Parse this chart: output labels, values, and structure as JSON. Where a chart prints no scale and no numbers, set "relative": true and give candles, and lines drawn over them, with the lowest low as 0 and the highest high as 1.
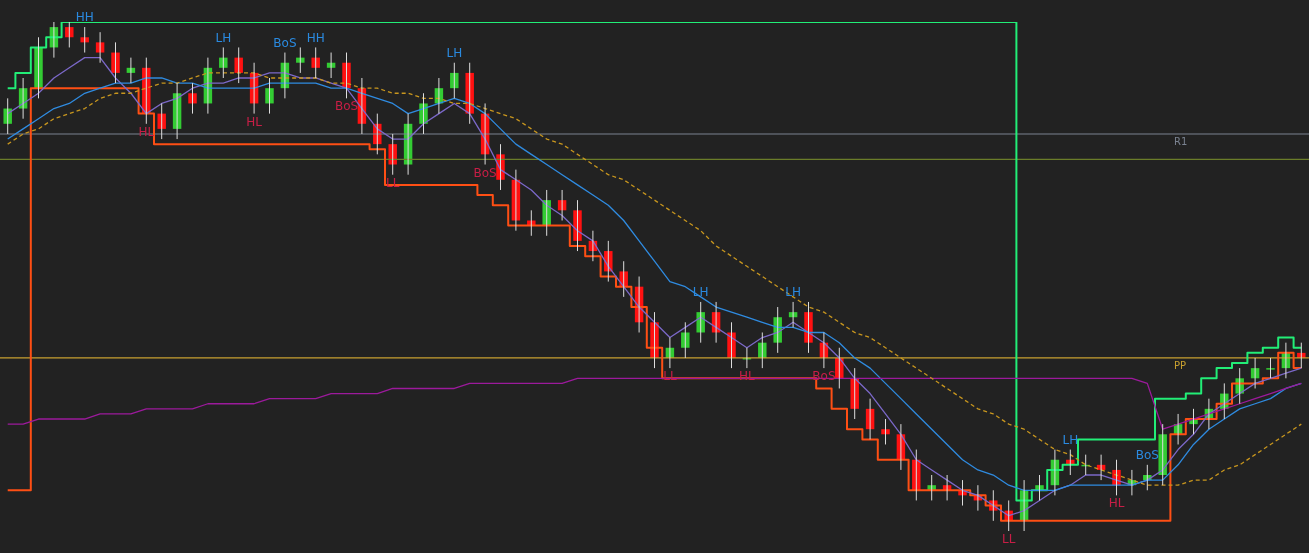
{
  "chart_data": {
    "type": "candlestick",
    "relative": true,
    "categories": [
      null,
      null,
      null,
      null,
      null,
      null,
      null,
      null,
      null,
      null,
      null,
      null,
      null,
      null,
      null,
      null,
      null,
      null,
      null,
      null,
      null,
      null,
      null,
      null,
      null,
      null,
      null,
      null,
      null,
      null,
      null,
      null,
      null,
      null,
      null,
      null,
      null,
      null,
      null,
      null,
      null,
      null,
      null,
      null,
      null,
      null,
      null,
      null,
      null,
      null,
      null,
      null,
      null,
      null,
      null,
      null,
      null,
      null,
      null,
      null,
      null,
      null,
      null,
      null,
      null,
      null,
      null,
      null,
      null,
      null,
      null,
      null,
      null,
      null,
      null,
      null,
      null,
      null,
      null,
      null,
      null,
      null,
      null,
      null,
      null
    ],
    "ohlc": [
      [
        0.8,
        0.85,
        0.78,
        0.83
      ],
      [
        0.83,
        0.89,
        0.81,
        0.87
      ],
      [
        0.87,
        0.97,
        0.85,
        0.95
      ],
      [
        0.95,
        1.0,
        0.93,
        0.99
      ],
      [
        0.99,
        1.0,
        0.95,
        0.97
      ],
      [
        0.97,
        0.99,
        0.94,
        0.96
      ],
      [
        0.96,
        0.98,
        0.92,
        0.94
      ],
      [
        0.94,
        0.96,
        0.88,
        0.9
      ],
      [
        0.9,
        0.93,
        0.88,
        0.91
      ],
      [
        0.91,
        0.93,
        0.8,
        0.82
      ],
      [
        0.82,
        0.84,
        0.77,
        0.79
      ],
      [
        0.79,
        0.88,
        0.77,
        0.86
      ],
      [
        0.86,
        0.88,
        0.82,
        0.84
      ],
      [
        0.84,
        0.93,
        0.82,
        0.91
      ],
      [
        0.91,
        0.95,
        0.89,
        0.93
      ],
      [
        0.93,
        0.95,
        0.88,
        0.9
      ],
      [
        0.9,
        0.92,
        0.82,
        0.84
      ],
      [
        0.84,
        0.89,
        0.82,
        0.87
      ],
      [
        0.87,
        0.94,
        0.85,
        0.92
      ],
      [
        0.92,
        0.95,
        0.9,
        0.93
      ],
      [
        0.93,
        0.95,
        0.89,
        0.91
      ],
      [
        0.91,
        0.94,
        0.89,
        0.92
      ],
      [
        0.92,
        0.94,
        0.85,
        0.87
      ],
      [
        0.87,
        0.89,
        0.78,
        0.8
      ],
      [
        0.8,
        0.82,
        0.74,
        0.76
      ],
      [
        0.76,
        0.78,
        0.7,
        0.72
      ],
      [
        0.72,
        0.82,
        0.7,
        0.8
      ],
      [
        0.8,
        0.86,
        0.78,
        0.84
      ],
      [
        0.84,
        0.89,
        0.82,
        0.87
      ],
      [
        0.87,
        0.92,
        0.85,
        0.9
      ],
      [
        0.9,
        0.92,
        0.8,
        0.82
      ],
      [
        0.82,
        0.84,
        0.72,
        0.74
      ],
      [
        0.74,
        0.76,
        0.67,
        0.69
      ],
      [
        0.69,
        0.71,
        0.59,
        0.61
      ],
      [
        0.61,
        0.63,
        0.58,
        0.6
      ],
      [
        0.6,
        0.67,
        0.58,
        0.65
      ],
      [
        0.65,
        0.67,
        0.61,
        0.63
      ],
      [
        0.63,
        0.65,
        0.55,
        0.57
      ],
      [
        0.57,
        0.59,
        0.53,
        0.55
      ],
      [
        0.55,
        0.57,
        0.49,
        0.51
      ],
      [
        0.51,
        0.53,
        0.46,
        0.48
      ],
      [
        0.48,
        0.5,
        0.39,
        0.41
      ],
      [
        0.41,
        0.43,
        0.32,
        0.34
      ],
      [
        0.34,
        0.38,
        0.32,
        0.36
      ],
      [
        0.36,
        0.41,
        0.34,
        0.39
      ],
      [
        0.39,
        0.45,
        0.37,
        0.43
      ],
      [
        0.43,
        0.45,
        0.37,
        0.39
      ],
      [
        0.39,
        0.41,
        0.32,
        0.34
      ],
      [
        0.34,
        0.36,
        0.32,
        0.34
      ],
      [
        0.34,
        0.39,
        0.32,
        0.37
      ],
      [
        0.37,
        0.44,
        0.35,
        0.42
      ],
      [
        0.42,
        0.45,
        0.4,
        0.43
      ],
      [
        0.43,
        0.45,
        0.35,
        0.37
      ],
      [
        0.37,
        0.39,
        0.32,
        0.34
      ],
      [
        0.34,
        0.36,
        0.28,
        0.3
      ],
      [
        0.3,
        0.32,
        0.22,
        0.24
      ],
      [
        0.24,
        0.26,
        0.18,
        0.2
      ],
      [
        0.2,
        0.22,
        0.17,
        0.19
      ],
      [
        0.19,
        0.21,
        0.12,
        0.14
      ],
      [
        0.14,
        0.16,
        0.06,
        0.08
      ],
      [
        0.08,
        0.11,
        0.06,
        0.09
      ],
      [
        0.09,
        0.11,
        0.06,
        0.08
      ],
      [
        0.08,
        0.1,
        0.05,
        0.07
      ],
      [
        0.07,
        0.09,
        0.04,
        0.06
      ],
      [
        0.06,
        0.08,
        0.02,
        0.04
      ],
      [
        0.04,
        0.06,
        0.0,
        0.02
      ],
      [
        0.02,
        0.1,
        0.0,
        0.08
      ],
      [
        0.08,
        0.11,
        0.06,
        0.09
      ],
      [
        0.09,
        0.16,
        0.07,
        0.14
      ],
      [
        0.14,
        0.16,
        0.11,
        0.13
      ],
      [
        0.13,
        0.15,
        0.11,
        0.13
      ],
      [
        0.13,
        0.15,
        0.1,
        0.12
      ],
      [
        0.12,
        0.14,
        0.07,
        0.09
      ],
      [
        0.09,
        0.12,
        0.07,
        0.1
      ],
      [
        0.1,
        0.13,
        0.08,
        0.11
      ],
      [
        0.11,
        0.21,
        0.09,
        0.19
      ],
      [
        0.19,
        0.23,
        0.17,
        0.21
      ],
      [
        0.21,
        0.24,
        0.19,
        0.22
      ],
      [
        0.22,
        0.26,
        0.2,
        0.24
      ],
      [
        0.24,
        0.29,
        0.22,
        0.27
      ],
      [
        0.27,
        0.32,
        0.25,
        0.3
      ],
      [
        0.3,
        0.34,
        0.28,
        0.32
      ],
      [
        0.32,
        0.34,
        0.3,
        0.32
      ],
      [
        0.32,
        0.37,
        0.3,
        0.35
      ],
      [
        0.35,
        0.37,
        0.32,
        0.34
      ]
    ],
    "colors": [
      "#33cc33",
      "#33cc33",
      "#33cc33",
      "#33cc33",
      "#ff1111",
      "#ff1111",
      "#ff1111",
      "#ff1111",
      "#33cc33",
      "#ff1111",
      "#ff1111",
      "#33cc33",
      "#ff1111",
      "#33cc33",
      "#33cc33",
      "#ff1111",
      "#ff1111",
      "#33cc33",
      "#33cc33",
      "#33cc33",
      "#ff1111",
      "#33cc33",
      "#ff1111",
      "#ff1111",
      "#ff1111",
      "#ff1111",
      "#33cc33",
      "#33cc33",
      "#33cc33",
      "#33cc33",
      "#ff1111",
      "#ff1111",
      "#ff1111",
      "#ff1111",
      "#ff1111",
      "#33cc33",
      "#ff1111",
      "#ff1111",
      "#ff1111",
      "#ff1111",
      "#ff1111",
      "#ff1111",
      "#ff1111",
      "#33cc33",
      "#33cc33",
      "#33cc33",
      "#ff1111",
      "#ff1111",
      "#33cc33",
      "#33cc33",
      "#33cc33",
      "#33cc33",
      "#ff1111",
      "#ff1111",
      "#ff1111",
      "#ff1111",
      "#ff1111",
      "#ff1111",
      "#ff1111",
      "#ff1111",
      "#33cc33",
      "#ff1111",
      "#ff1111",
      "#ff1111",
      "#ff1111",
      "#ff1111",
      "#33cc33",
      "#33cc33",
      "#33cc33",
      "#ff1111",
      "#33cc33",
      "#ff1111",
      "#ff1111",
      "#33cc33",
      "#33cc33",
      "#33cc33",
      "#33cc33",
      "#33cc33",
      "#33cc33",
      "#33cc33",
      "#33cc33",
      "#33cc33",
      "#33cc33",
      "#33cc33",
      "#ff1111"
    ],
    "value_labels": [
      null,
      null,
      null,
      null,
      null,
      "HH",
      null,
      null,
      null,
      "HL",
      null,
      null,
      null,
      null,
      "LH",
      null,
      "HL",
      null,
      "BoS",
      null,
      "HH",
      null,
      "BoS",
      null,
      null,
      "LL",
      null,
      null,
      null,
      "LH",
      null,
      "BoS",
      null,
      null,
      null,
      null,
      null,
      null,
      null,
      null,
      null,
      null,
      null,
      "LL",
      null,
      "LH",
      null,
      null,
      "HL",
      null,
      null,
      "LH",
      null,
      "BoS",
      null,
      null,
      null,
      null,
      null,
      null,
      null,
      null,
      null,
      null,
      null,
      "LL",
      null,
      null,
      null,
      "LH",
      null,
      null,
      "HL",
      null,
      "BoS",
      null,
      null,
      null,
      null,
      null,
      null,
      null,
      null,
      null,
      null
    ],
    "series": [
      {
        "type": "line",
        "color": "#c8961e",
        "line_style": "dashed",
        "values": [
          0.76,
          0.78,
          0.79,
          0.81,
          0.82,
          0.83,
          0.85,
          0.86,
          0.86,
          0.87,
          0.88,
          0.88,
          0.89,
          0.9,
          0.9,
          0.9,
          0.9,
          0.89,
          0.89,
          0.89,
          0.89,
          0.88,
          0.88,
          0.87,
          0.87,
          0.86,
          0.86,
          0.85,
          0.85,
          0.84,
          0.84,
          0.83,
          0.82,
          0.81,
          0.79,
          0.77,
          0.76,
          0.74,
          0.72,
          0.7,
          0.69,
          0.67,
          0.65,
          0.63,
          0.61,
          0.59,
          0.56,
          0.54,
          0.52,
          0.5,
          0.48,
          0.46,
          0.44,
          0.43,
          0.41,
          0.39,
          0.38,
          0.36,
          0.34,
          0.32,
          0.3,
          0.28,
          0.26,
          0.24,
          0.23,
          0.21,
          0.2,
          0.18,
          0.16,
          0.15,
          0.13,
          0.12,
          0.11,
          0.1,
          0.09,
          0.09,
          0.09,
          0.1,
          0.1,
          0.12,
          0.13,
          0.15,
          0.17,
          0.19,
          0.21
        ]
      },
      {
        "type": "line",
        "color": "#9c1a9c",
        "line_style": "solid",
        "values": [
          0.21,
          0.21,
          0.22,
          0.22,
          0.22,
          0.22,
          0.23,
          0.23,
          0.23,
          0.24,
          0.24,
          0.24,
          0.24,
          0.25,
          0.25,
          0.25,
          0.25,
          0.26,
          0.26,
          0.26,
          0.26,
          0.27,
          0.27,
          0.27,
          0.27,
          0.28,
          0.28,
          0.28,
          0.28,
          0.28,
          0.29,
          0.29,
          0.29,
          0.29,
          0.29,
          0.29,
          0.29,
          0.3,
          0.3,
          0.3,
          0.3,
          0.3,
          0.3,
          0.3,
          0.3,
          0.3,
          0.3,
          0.3,
          0.3,
          0.3,
          0.3,
          0.3,
          0.3,
          0.3,
          0.3,
          0.3,
          0.3,
          0.3,
          0.3,
          0.3,
          0.3,
          0.3,
          0.3,
          0.3,
          0.3,
          0.3,
          0.3,
          0.3,
          0.3,
          0.3,
          0.3,
          0.3,
          0.3,
          0.3,
          0.29,
          0.2,
          0.21,
          0.22,
          0.23,
          0.24,
          0.25,
          0.26,
          0.27,
          0.28,
          0.29
        ]
      },
      {
        "type": "line",
        "color": "#2f8be0",
        "line_style": "solid",
        "values": [
          0.77,
          0.79,
          0.81,
          0.83,
          0.84,
          0.86,
          0.87,
          0.88,
          0.88,
          0.89,
          0.89,
          0.88,
          0.88,
          0.87,
          0.87,
          0.87,
          0.87,
          0.88,
          0.88,
          0.88,
          0.88,
          0.87,
          0.87,
          0.86,
          0.85,
          0.84,
          0.82,
          0.83,
          0.84,
          0.85,
          0.84,
          0.82,
          0.79,
          0.76,
          0.74,
          0.72,
          0.7,
          0.68,
          0.66,
          0.64,
          0.61,
          0.57,
          0.53,
          0.49,
          0.48,
          0.46,
          0.44,
          0.43,
          0.42,
          0.41,
          0.4,
          0.4,
          0.39,
          0.39,
          0.37,
          0.34,
          0.32,
          0.29,
          0.26,
          0.23,
          0.2,
          0.17,
          0.14,
          0.12,
          0.11,
          0.09,
          0.08,
          0.08,
          0.08,
          0.09,
          0.09,
          0.09,
          0.09,
          0.09,
          0.1,
          0.1,
          0.13,
          0.17,
          0.2,
          0.22,
          0.24,
          0.25,
          0.26,
          0.28,
          0.29
        ]
      },
      {
        "type": "line",
        "color": "#7b68c8",
        "line_style": "solid",
        "values": [
          0.82,
          0.84,
          0.86,
          0.89,
          0.91,
          0.93,
          0.93,
          0.89,
          0.86,
          0.82,
          0.84,
          0.85,
          0.87,
          0.88,
          0.88,
          0.89,
          0.89,
          0.9,
          0.9,
          0.89,
          0.89,
          0.88,
          0.87,
          0.83,
          0.79,
          0.77,
          0.77,
          0.8,
          0.82,
          0.84,
          0.82,
          0.77,
          0.71,
          0.69,
          0.67,
          0.64,
          0.62,
          0.59,
          0.57,
          0.52,
          0.48,
          0.44,
          0.41,
          0.38,
          0.4,
          0.42,
          0.4,
          0.38,
          0.36,
          0.38,
          0.39,
          0.41,
          0.39,
          0.37,
          0.34,
          0.3,
          0.27,
          0.23,
          0.19,
          0.14,
          0.12,
          0.1,
          0.08,
          0.07,
          0.05,
          0.03,
          0.04,
          0.06,
          0.08,
          0.09,
          0.11,
          0.11,
          0.1,
          0.09,
          0.1,
          0.12,
          0.16,
          0.19,
          0.23,
          0.25,
          0.27,
          0.29,
          0.3,
          0.31,
          0.32
        ]
      },
      {
        "type": "step",
        "color": "#22ee77",
        "line_style": "solid",
        "values": [
          0.87,
          0.9,
          0.95,
          0.97,
          1.0,
          1.0,
          1.0,
          1.0,
          1.0,
          1.0,
          1.0,
          1.0,
          1.0,
          1.0,
          1.0,
          1.0,
          1.0,
          1.0,
          1.0,
          1.0,
          1.0,
          1.0,
          1.0,
          1.0,
          1.0,
          1.0,
          1.0,
          1.0,
          1.0,
          1.0,
          1.0,
          1.0,
          1.0,
          1.0,
          1.0,
          1.0,
          1.0,
          1.0,
          1.0,
          1.0,
          1.0,
          1.0,
          1.0,
          1.0,
          1.0,
          1.0,
          1.0,
          1.0,
          1.0,
          1.0,
          1.0,
          1.0,
          1.0,
          1.0,
          1.0,
          1.0,
          1.0,
          1.0,
          1.0,
          1.0,
          1.0,
          1.0,
          1.0,
          1.0,
          1.0,
          1.0,
          0.06,
          0.08,
          0.12,
          0.13,
          0.18,
          0.18,
          0.18,
          0.18,
          0.18,
          0.26,
          0.26,
          0.27,
          0.3,
          0.32,
          0.33,
          0.35,
          0.36,
          0.38,
          0.36
        ]
      },
      {
        "type": "step",
        "color": "#ff4f14",
        "line_style": "solid",
        "values": [
          0.08,
          0.08,
          0.87,
          0.87,
          0.87,
          0.87,
          0.87,
          0.87,
          0.87,
          0.82,
          0.76,
          0.76,
          0.76,
          0.76,
          0.76,
          0.76,
          0.76,
          0.76,
          0.76,
          0.76,
          0.76,
          0.76,
          0.76,
          0.76,
          0.75,
          0.68,
          0.68,
          0.68,
          0.68,
          0.68,
          0.68,
          0.66,
          0.64,
          0.6,
          0.6,
          0.6,
          0.6,
          0.56,
          0.54,
          0.5,
          0.48,
          0.44,
          0.36,
          0.3,
          0.3,
          0.3,
          0.3,
          0.3,
          0.3,
          0.3,
          0.3,
          0.3,
          0.3,
          0.28,
          0.24,
          0.2,
          0.18,
          0.14,
          0.14,
          0.08,
          0.08,
          0.08,
          0.08,
          0.07,
          0.05,
          0.02,
          0.02,
          0.02,
          0.02,
          0.02,
          0.02,
          0.02,
          0.02,
          0.02,
          0.02,
          0.02,
          0.19,
          0.22,
          0.22,
          0.25,
          0.29,
          0.29,
          0.3,
          0.35,
          0.32
        ]
      }
    ],
    "ref_lines": [
      {
        "axis": "y",
        "value": 0.73,
        "color": "#6b7d2a"
      },
      {
        "axis": "y",
        "value": 0.78,
        "label": "R1",
        "color": "#7a8290"
      },
      {
        "axis": "y",
        "value": 0.34,
        "label": "PP",
        "color": "#c8a030"
      }
    ]
  }
}
